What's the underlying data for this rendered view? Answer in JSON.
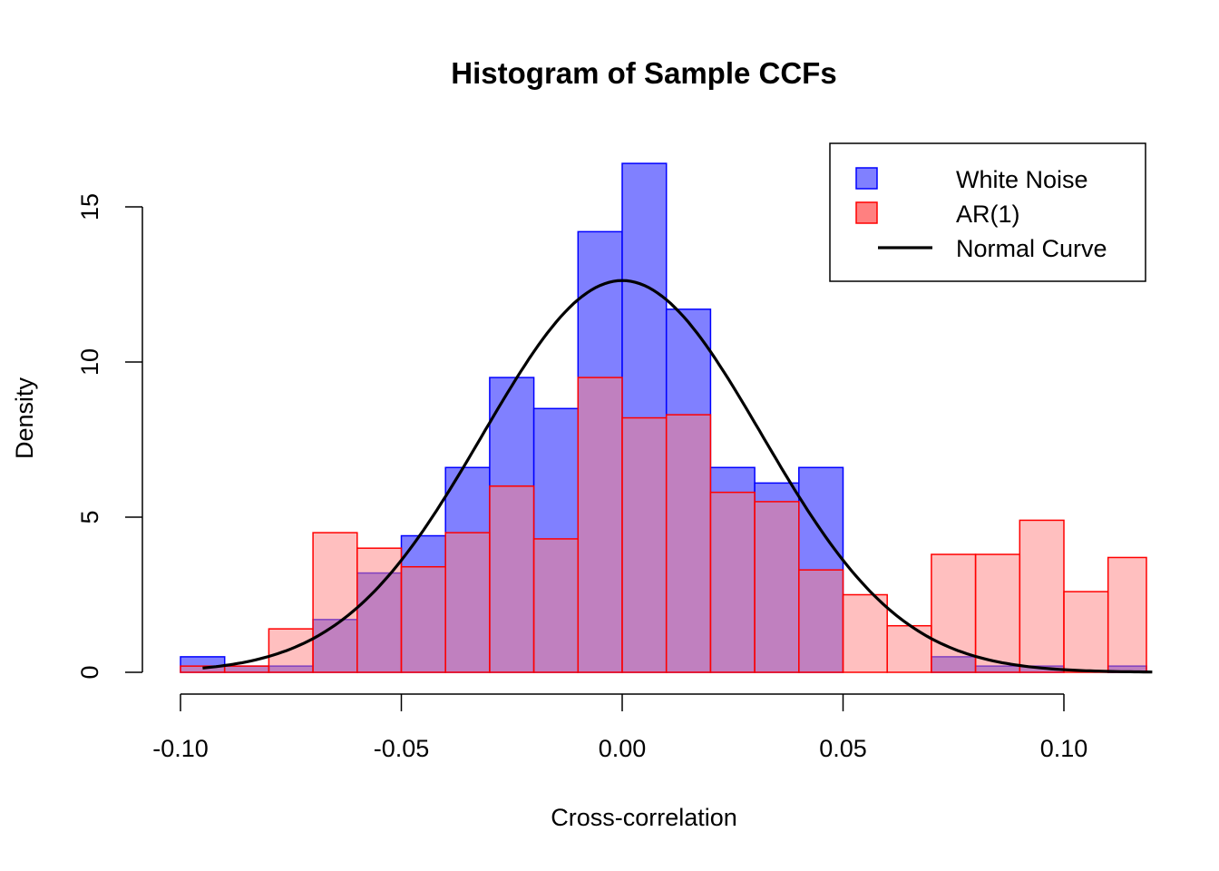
{
  "chart_data": {
    "type": "histogram",
    "title": "Histogram of Sample CCFs",
    "xlabel": "Cross-correlation",
    "ylabel": "Density",
    "xlim": [
      -0.1,
      0.12
    ],
    "ylim": [
      0,
      17
    ],
    "bin_width": 0.01,
    "bin_starts": [
      -0.1,
      -0.09,
      -0.08,
      -0.07,
      -0.06,
      -0.05,
      -0.04,
      -0.03,
      -0.02,
      -0.01,
      0.0,
      0.01,
      0.02,
      0.03,
      0.04,
      0.05,
      0.06,
      0.07,
      0.08,
      0.09,
      0.1,
      0.11
    ],
    "x_ticks": [
      -0.1,
      -0.05,
      0.0,
      0.05,
      0.1
    ],
    "x_tick_labels": [
      "-0.10",
      "-0.05",
      "0.00",
      "0.05",
      "0.10"
    ],
    "y_ticks": [
      0,
      5,
      10,
      15
    ],
    "y_tick_labels": [
      "0",
      "5",
      "10",
      "15"
    ],
    "series": [
      {
        "name": "White Noise",
        "fill": "#8080ff",
        "stroke": "#0000ff",
        "values": [
          0.5,
          0.2,
          0.2,
          1.7,
          3.2,
          4.4,
          6.6,
          9.5,
          8.5,
          14.2,
          16.4,
          11.7,
          6.6,
          6.1,
          6.6,
          0.0,
          0.0,
          0.5,
          0.2,
          0.2,
          0.0,
          0.2
        ]
      },
      {
        "name": "AR(1)",
        "fill": "#ff8080",
        "stroke": "#ff0000",
        "values": [
          0.2,
          0.2,
          1.4,
          4.5,
          4.0,
          3.4,
          4.5,
          6.0,
          4.3,
          9.5,
          8.2,
          8.3,
          5.8,
          5.5,
          3.3,
          2.5,
          1.5,
          3.8,
          3.8,
          4.9,
          2.6,
          3.7
        ]
      }
    ],
    "normal_curve": {
      "name": "Normal Curve",
      "mean": 0.0,
      "sd": 0.0316,
      "x_range": [
        -0.095,
        0.12
      ],
      "color": "#000000"
    },
    "overlap_color": "#c0407f",
    "legend": {
      "position": "top-right",
      "entries": [
        "White Noise",
        "AR(1)",
        "Normal Curve"
      ]
    },
    "grid": false
  }
}
